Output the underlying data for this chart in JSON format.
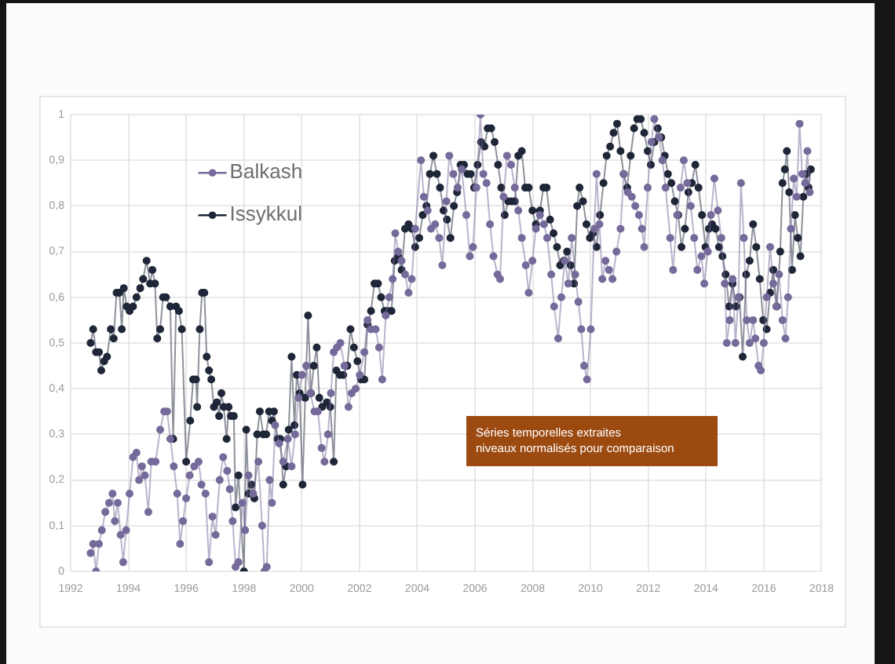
{
  "chart_data": {
    "type": "line",
    "marker": "circle",
    "grid": true,
    "legend": "top left",
    "annotations": [
      "Séries temporelles extraites",
      "niveaux normalisés pour comparaison"
    ],
    "xlim": [
      1992,
      2018
    ],
    "xticks": [
      1992,
      1994,
      1996,
      1998,
      2000,
      2002,
      2004,
      2006,
      2008,
      2010,
      2012,
      2014,
      2016,
      2018
    ],
    "ylim": [
      0,
      1
    ],
    "yticks": [
      0,
      {
        "value": 0.1,
        "label": "0,1"
      },
      {
        "value": 0.2,
        "label": "0,2"
      },
      {
        "value": 0.3,
        "label": "0,3"
      },
      {
        "value": 0.4,
        "label": "0,4"
      },
      {
        "value": 0.5,
        "label": "0,5"
      },
      {
        "value": 0.6,
        "label": "0,6"
      },
      {
        "value": 0.7,
        "label": "0,7"
      },
      {
        "value": 0.8,
        "label": "0,8"
      },
      {
        "value": 0.9,
        "label": "0,9"
      },
      1
    ],
    "series": [
      {
        "name": "Balkash",
        "color": "#756a9a",
        "x": [
          1992.69,
          1992.78,
          1992.88,
          1992.98,
          1993.08,
          1993.2,
          1993.33,
          1993.45,
          1993.53,
          1993.63,
          1993.73,
          1993.82,
          1993.92,
          1994.04,
          1994.16,
          1994.28,
          1994.37,
          1994.47,
          1994.57,
          1994.69,
          1994.79,
          1994.94,
          1995.1,
          1995.24,
          1995.34,
          1995.45,
          1995.57,
          1995.69,
          1995.79,
          1995.89,
          1996.0,
          1996.12,
          1996.28,
          1996.43,
          1996.53,
          1996.67,
          1996.79,
          1996.91,
          1997.02,
          1997.16,
          1997.28,
          1997.42,
          1997.51,
          1997.61,
          1997.71,
          1997.81,
          1997.95,
          1998.04,
          1998.16,
          1998.32,
          1998.5,
          1998.63,
          1998.71,
          1998.79,
          1998.89,
          1998.97,
          1999.08,
          1999.22,
          1999.36,
          1999.52,
          1999.65,
          1999.77,
          1999.89,
          2000.01,
          2000.16,
          2000.3,
          2000.44,
          2000.56,
          2000.69,
          2000.79,
          2000.91,
          2001.01,
          2001.11,
          2001.22,
          2001.34,
          2001.48,
          2001.62,
          2001.73,
          2001.87,
          2002.01,
          2002.17,
          2002.28,
          2002.4,
          2002.56,
          2002.68,
          2002.79,
          2002.91,
          2003.03,
          2003.15,
          2003.24,
          2003.34,
          2003.46,
          2003.58,
          2003.7,
          2003.81,
          2003.93,
          2004.13,
          2004.23,
          2004.36,
          2004.48,
          2004.62,
          2004.76,
          2004.87,
          2005.01,
          2005.11,
          2005.25,
          2005.4,
          2005.54,
          2005.7,
          2005.82,
          2005.93,
          2006.05,
          2006.19,
          2006.29,
          2006.4,
          2006.52,
          2006.64,
          2006.78,
          2006.87,
          2006.99,
          2007.11,
          2007.25,
          2007.38,
          2007.5,
          2007.62,
          2007.76,
          2007.86,
          2007.99,
          2008.11,
          2008.25,
          2008.39,
          2008.5,
          2008.64,
          2008.74,
          2008.88,
          2008.99,
          2009.11,
          2009.23,
          2009.35,
          2009.47,
          2009.58,
          2009.68,
          2009.78,
          2009.88,
          2010.01,
          2010.13,
          2010.21,
          2010.31,
          2010.41,
          2010.52,
          2010.64,
          2010.76,
          2010.9,
          2011.04,
          2011.15,
          2011.29,
          2011.43,
          2011.55,
          2011.68,
          2011.78,
          2011.86,
          2011.98,
          2012.11,
          2012.21,
          2012.37,
          2012.49,
          2012.6,
          2012.76,
          2012.86,
          2013.0,
          2013.12,
          2013.23,
          2013.35,
          2013.47,
          2013.59,
          2013.7,
          2013.84,
          2013.94,
          2014.06,
          2014.17,
          2014.29,
          2014.41,
          2014.53,
          2014.65,
          2014.72,
          2014.82,
          2014.92,
          2015.02,
          2015.12,
          2015.21,
          2015.31,
          2015.41,
          2015.51,
          2015.63,
          2015.71,
          2015.82,
          2015.9,
          2016.0,
          2016.1,
          2016.22,
          2016.33,
          2016.43,
          2016.53,
          2016.65,
          2016.75,
          2016.84,
          2016.94,
          2017.04,
          2017.14,
          2017.24,
          2017.33,
          2017.43,
          2017.51,
          2017.59
        ],
        "values": [
          0.04,
          0.06,
          0.0,
          0.06,
          0.09,
          0.13,
          0.15,
          0.17,
          0.11,
          0.15,
          0.08,
          0.02,
          0.09,
          0.17,
          0.25,
          0.26,
          0.2,
          0.23,
          0.21,
          0.13,
          0.24,
          0.24,
          0.31,
          0.35,
          0.35,
          0.29,
          0.23,
          0.17,
          0.06,
          0.11,
          0.16,
          0.21,
          0.23,
          0.24,
          0.19,
          0.17,
          0.02,
          0.12,
          0.08,
          0.2,
          0.25,
          0.22,
          0.18,
          0.11,
          0.01,
          0.02,
          0.15,
          0.09,
          0.21,
          0.17,
          0.24,
          0.1,
          0.0,
          0.01,
          0.2,
          0.15,
          0.32,
          0.28,
          0.24,
          0.29,
          0.23,
          0.3,
          0.38,
          0.43,
          0.45,
          0.39,
          0.35,
          0.35,
          0.27,
          0.24,
          0.3,
          0.39,
          0.48,
          0.49,
          0.5,
          0.45,
          0.36,
          0.39,
          0.4,
          0.43,
          0.48,
          0.55,
          0.53,
          0.53,
          0.49,
          0.42,
          0.56,
          0.6,
          0.64,
          0.74,
          0.7,
          0.68,
          0.65,
          0.61,
          0.64,
          0.75,
          0.9,
          0.82,
          0.79,
          0.75,
          0.76,
          0.73,
          0.67,
          0.81,
          0.91,
          0.87,
          0.84,
          0.88,
          0.78,
          0.69,
          0.71,
          0.84,
          1.0,
          0.87,
          0.85,
          0.76,
          0.69,
          0.65,
          0.64,
          0.82,
          0.91,
          0.89,
          0.84,
          0.79,
          0.73,
          0.67,
          0.61,
          0.68,
          0.75,
          0.78,
          0.76,
          0.73,
          0.65,
          0.58,
          0.51,
          0.6,
          0.68,
          0.63,
          0.73,
          0.65,
          0.59,
          0.53,
          0.45,
          0.42,
          0.53,
          0.75,
          0.87,
          0.76,
          0.64,
          0.68,
          0.66,
          0.64,
          0.7,
          0.75,
          0.87,
          0.83,
          0.82,
          0.8,
          0.78,
          0.75,
          0.71,
          0.84,
          0.94,
          0.99,
          0.95,
          0.9,
          0.84,
          0.73,
          0.66,
          0.78,
          0.84,
          0.9,
          0.85,
          0.8,
          0.73,
          0.66,
          0.69,
          0.63,
          0.7,
          0.78,
          0.86,
          0.79,
          0.73,
          0.63,
          0.5,
          0.55,
          0.64,
          0.5,
          0.6,
          0.85,
          0.73,
          0.55,
          0.5,
          0.55,
          0.51,
          0.45,
          0.44,
          0.5,
          0.6,
          0.71,
          0.63,
          0.58,
          0.65,
          0.55,
          0.51,
          0.6,
          0.75,
          0.86,
          0.82,
          0.98,
          0.87,
          0.85,
          0.92,
          0.83
        ]
      },
      {
        "name": "Issykkul",
        "color": "#1e2638",
        "x": [
          1992.69,
          1992.78,
          1992.88,
          1992.98,
          1993.06,
          1993.16,
          1993.26,
          1993.39,
          1993.49,
          1993.59,
          1993.69,
          1993.77,
          1993.84,
          1993.94,
          1994.04,
          1994.16,
          1994.28,
          1994.41,
          1994.51,
          1994.63,
          1994.75,
          1994.83,
          1994.92,
          1995.0,
          1995.1,
          1995.2,
          1995.3,
          1995.45,
          1995.55,
          1995.65,
          1995.75,
          1995.85,
          1996.0,
          1996.14,
          1996.24,
          1996.34,
          1996.38,
          1996.47,
          1996.55,
          1996.63,
          1996.71,
          1996.79,
          1996.87,
          1996.96,
          1997.06,
          1997.14,
          1997.22,
          1997.3,
          1997.4,
          1997.47,
          1997.55,
          1997.65,
          1997.71,
          1997.81,
          1998.0,
          1998.08,
          1998.16,
          1998.26,
          1998.36,
          1998.46,
          1998.55,
          1998.67,
          1998.77,
          1998.87,
          1998.97,
          1999.04,
          1999.16,
          1999.26,
          1999.36,
          1999.46,
          1999.55,
          1999.65,
          1999.75,
          1999.83,
          1999.93,
          2000.03,
          2000.12,
          2000.22,
          2000.32,
          2000.42,
          2000.52,
          2000.61,
          2000.71,
          2000.87,
          2000.99,
          2001.11,
          2001.2,
          2001.32,
          2001.44,
          2001.58,
          2001.69,
          2001.81,
          2001.93,
          2002.05,
          2002.17,
          2002.28,
          2002.4,
          2002.52,
          2002.64,
          2002.75,
          2002.87,
          2002.99,
          2003.11,
          2003.22,
          2003.34,
          2003.46,
          2003.58,
          2003.7,
          2003.81,
          2003.93,
          2004.07,
          2004.19,
          2004.32,
          2004.44,
          2004.56,
          2004.68,
          2004.79,
          2004.91,
          2005.03,
          2005.15,
          2005.27,
          2005.38,
          2005.5,
          2005.62,
          2005.74,
          2005.85,
          2005.97,
          2006.09,
          2006.21,
          2006.33,
          2006.44,
          2006.56,
          2006.68,
          2006.8,
          2006.91,
          2007.03,
          2007.15,
          2007.27,
          2007.38,
          2007.5,
          2007.62,
          2007.74,
          2007.86,
          2007.99,
          2008.11,
          2008.25,
          2008.37,
          2008.48,
          2008.6,
          2008.72,
          2008.84,
          2008.95,
          2009.07,
          2009.19,
          2009.31,
          2009.43,
          2009.54,
          2009.62,
          2009.74,
          2009.86,
          2009.98,
          2010.09,
          2010.21,
          2010.33,
          2010.45,
          2010.56,
          2010.68,
          2010.8,
          2010.92,
          2011.04,
          2011.15,
          2011.27,
          2011.39,
          2011.51,
          2011.62,
          2011.74,
          2011.86,
          2011.98,
          2012.09,
          2012.21,
          2012.33,
          2012.45,
          2012.57,
          2012.68,
          2012.8,
          2012.92,
          2013.04,
          2013.15,
          2013.27,
          2013.39,
          2013.51,
          2013.63,
          2013.74,
          2013.86,
          2013.98,
          2014.1,
          2014.21,
          2014.33,
          2014.45,
          2014.57,
          2014.68,
          2014.8,
          2014.92,
          2015.04,
          2015.16,
          2015.27,
          2015.39,
          2015.51,
          2015.63,
          2015.74,
          2015.86,
          2015.98,
          2016.1,
          2016.22,
          2016.33,
          2016.45,
          2016.57,
          2016.65,
          2016.73,
          2016.8,
          2016.88,
          2016.98,
          2017.08,
          2017.18,
          2017.27,
          2017.37,
          2017.47,
          2017.55,
          2017.63
        ],
        "values": [
          0.5,
          0.53,
          0.48,
          0.48,
          0.44,
          0.46,
          0.47,
          0.53,
          0.51,
          0.61,
          0.61,
          0.53,
          0.62,
          0.58,
          0.57,
          0.58,
          0.6,
          0.62,
          0.64,
          0.68,
          0.63,
          0.66,
          0.63,
          0.51,
          0.53,
          0.6,
          0.6,
          0.58,
          0.29,
          0.58,
          0.57,
          0.53,
          0.24,
          0.33,
          0.42,
          0.42,
          0.36,
          0.53,
          0.61,
          0.61,
          0.47,
          0.44,
          0.42,
          0.36,
          0.37,
          0.34,
          0.39,
          0.36,
          0.29,
          0.36,
          0.34,
          0.34,
          0.14,
          0.21,
          0.0,
          0.31,
          0.17,
          0.19,
          0.16,
          0.3,
          0.35,
          0.3,
          0.3,
          0.35,
          0.33,
          0.35,
          0.29,
          0.29,
          0.19,
          0.23,
          0.31,
          0.47,
          0.32,
          0.43,
          0.39,
          0.19,
          0.38,
          0.56,
          0.39,
          0.45,
          0.49,
          0.38,
          0.36,
          0.37,
          0.36,
          0.24,
          0.44,
          0.43,
          0.43,
          0.45,
          0.53,
          0.49,
          0.46,
          0.42,
          0.42,
          0.54,
          0.57,
          0.63,
          0.63,
          0.6,
          0.57,
          0.57,
          0.57,
          0.68,
          0.69,
          0.66,
          0.75,
          0.76,
          0.75,
          0.71,
          0.73,
          0.78,
          0.8,
          0.87,
          0.91,
          0.87,
          0.84,
          0.79,
          0.77,
          0.73,
          0.8,
          0.83,
          0.89,
          0.89,
          0.87,
          0.87,
          0.84,
          0.89,
          0.94,
          0.93,
          0.97,
          0.97,
          0.94,
          0.89,
          0.84,
          0.78,
          0.81,
          0.81,
          0.81,
          0.91,
          0.92,
          0.84,
          0.84,
          0.79,
          0.76,
          0.79,
          0.84,
          0.84,
          0.77,
          0.74,
          0.71,
          0.67,
          0.68,
          0.7,
          0.67,
          0.63,
          0.8,
          0.84,
          0.81,
          0.76,
          0.73,
          0.74,
          0.71,
          0.78,
          0.85,
          0.91,
          0.93,
          0.96,
          0.98,
          0.92,
          0.87,
          0.84,
          0.91,
          0.97,
          0.99,
          0.99,
          0.96,
          0.92,
          0.89,
          0.94,
          0.97,
          0.95,
          0.91,
          0.87,
          0.85,
          0.81,
          0.78,
          0.71,
          0.75,
          0.83,
          0.85,
          0.89,
          0.84,
          0.78,
          0.71,
          0.75,
          0.76,
          0.75,
          0.71,
          0.69,
          0.65,
          0.58,
          0.63,
          0.58,
          0.6,
          0.47,
          0.65,
          0.68,
          0.76,
          0.71,
          0.64,
          0.55,
          0.53,
          0.61,
          0.66,
          0.58,
          0.7,
          0.85,
          0.88,
          0.92,
          0.83,
          0.66,
          0.78,
          0.73,
          0.69,
          0.82,
          0.87,
          0.84,
          0.88
        ]
      }
    ]
  }
}
